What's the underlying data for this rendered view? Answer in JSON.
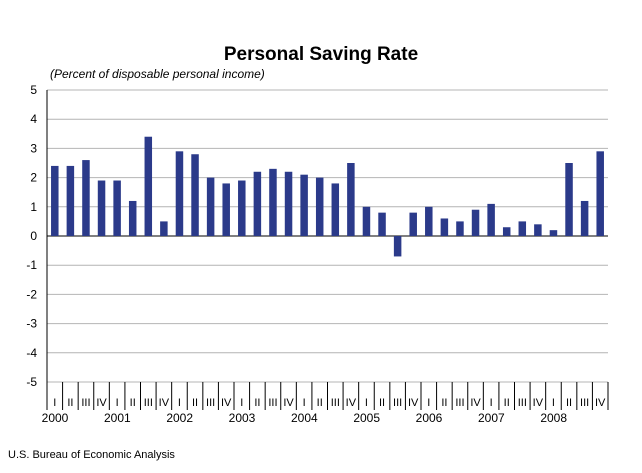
{
  "chart_data": {
    "type": "bar",
    "title": "Personal Saving Rate",
    "subtitle": "(Percent of disposable personal income)",
    "xlabel": "",
    "ylabel": "",
    "ylim": [
      -5,
      5
    ],
    "yticks": [
      5,
      4,
      3,
      2,
      1,
      0,
      -1,
      -2,
      -3,
      -4,
      -5
    ],
    "grid": true,
    "legend": "none",
    "bar_color": "#2B3A8A",
    "quarter_labels": [
      "I",
      "II",
      "III",
      "IV"
    ],
    "years": [
      "2000",
      "2001",
      "2002",
      "2003",
      "2004",
      "2005",
      "2006",
      "2007",
      "2008"
    ],
    "categories": [
      "2000 I",
      "2000 II",
      "2000 III",
      "2000 IV",
      "2001 I",
      "2001 II",
      "2001 III",
      "2001 IV",
      "2002 I",
      "2002 II",
      "2002 III",
      "2002 IV",
      "2003 I",
      "2003 II",
      "2003 III",
      "2003 IV",
      "2004 I",
      "2004 II",
      "2004 III",
      "2004 IV",
      "2005 I",
      "2005 II",
      "2005 III",
      "2005 IV",
      "2006 I",
      "2006 II",
      "2006 III",
      "2006 IV",
      "2007 I",
      "2007 II",
      "2007 III",
      "2007 IV",
      "2008 I",
      "2008 II",
      "2008 III",
      "2008 IV"
    ],
    "values": [
      2.4,
      2.4,
      2.6,
      1.9,
      1.9,
      1.2,
      3.4,
      0.5,
      2.9,
      2.8,
      2.0,
      1.8,
      1.9,
      2.2,
      2.3,
      2.2,
      2.1,
      2.0,
      1.8,
      2.5,
      1.0,
      0.8,
      -0.7,
      0.8,
      1.0,
      0.6,
      0.5,
      0.9,
      1.1,
      0.3,
      0.5,
      0.4,
      0.2,
      2.5,
      1.2,
      2.9
    ]
  },
  "footer": {
    "source": "U.S. Bureau of Economic Analysis"
  }
}
